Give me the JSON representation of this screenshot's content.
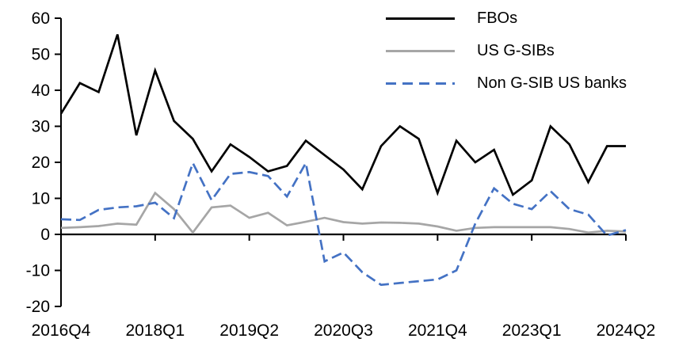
{
  "chart_data": {
    "type": "line",
    "title": "",
    "xlabel": "",
    "ylabel": "",
    "ylim": [
      -20,
      60
    ],
    "y_ticks": [
      60,
      50,
      40,
      30,
      20,
      10,
      0,
      -10,
      -20
    ],
    "grid": "off",
    "legend_position": "top-right",
    "x_categories": [
      "2016Q4",
      "2017Q1",
      "2017Q2",
      "2017Q3",
      "2017Q4",
      "2018Q1",
      "2018Q2",
      "2018Q3",
      "2018Q4",
      "2019Q1",
      "2019Q2",
      "2019Q3",
      "2019Q4",
      "2020Q1",
      "2020Q2",
      "2020Q3",
      "2020Q4",
      "2021Q1",
      "2021Q2",
      "2021Q3",
      "2021Q4",
      "2022Q1",
      "2022Q2",
      "2022Q3",
      "2022Q4",
      "2023Q1",
      "2023Q2",
      "2023Q3",
      "2023Q4",
      "2024Q1",
      "2024Q2"
    ],
    "x_tick_labels": [
      "2016Q4",
      "2018Q1",
      "2019Q2",
      "2020Q3",
      "2021Q4",
      "2023Q1",
      "2024Q2"
    ],
    "x_tick_indices": [
      0,
      5,
      10,
      15,
      20,
      25,
      30
    ],
    "series": [
      {
        "name": "FBOs",
        "color": "#000000",
        "style": "solid",
        "values": [
          33.5,
          42,
          39.5,
          55.5,
          27.5,
          45.5,
          31.5,
          26.5,
          17.5,
          25,
          21.5,
          17.5,
          19,
          26,
          22,
          18,
          12.5,
          24.5,
          30,
          26.5,
          11.5,
          26,
          20,
          23.5,
          11,
          15,
          30,
          25,
          14.5,
          24.5,
          24.5
        ]
      },
      {
        "name": "US G-SIBs",
        "color": "#a6a6a6",
        "style": "solid",
        "values": [
          1.8,
          2,
          2.3,
          3,
          2.7,
          11.5,
          7,
          0.5,
          7.5,
          8,
          4.6,
          6,
          2.5,
          3.5,
          4.6,
          3.4,
          3,
          3.3,
          3.2,
          3,
          2.2,
          1,
          1.8,
          2,
          2,
          2,
          2,
          1.5,
          0.5,
          1,
          0.8
        ]
      },
      {
        "name": "Non G-SIB US banks",
        "color": "#4472c4",
        "style": "dashed",
        "values": [
          4.2,
          4,
          6.8,
          7.5,
          7.8,
          8.8,
          4.5,
          19.8,
          9.5,
          16.8,
          17.3,
          16.2,
          10.5,
          19.8,
          -7.5,
          -5,
          -10.5,
          -14,
          -13.5,
          -13,
          -12.5,
          -10,
          3,
          12.8,
          8.5,
          7,
          12,
          7,
          5.5,
          -0.3,
          1.2
        ]
      }
    ]
  }
}
